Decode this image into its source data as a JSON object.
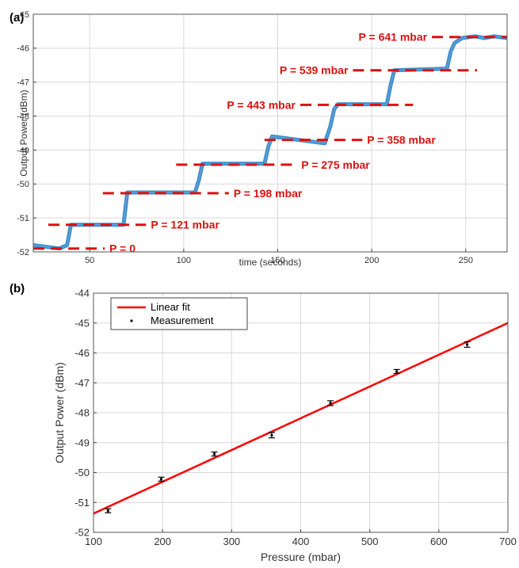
{
  "panels": {
    "a": "(a)",
    "b": "(b)"
  },
  "chart_data": [
    {
      "type": "line",
      "xlabel": "time (seconds)",
      "ylabel": "Output Power (dBm)",
      "xlim": [
        20,
        272
      ],
      "ylim": [
        -52,
        -45
      ],
      "xticks": [
        50,
        100,
        150,
        200,
        250
      ],
      "yticks": [
        -52,
        -51,
        -50,
        -49,
        -48,
        -47,
        -46,
        -45
      ],
      "grid": true,
      "series": [
        {
          "type": "line",
          "color": "#2f7fc1",
          "x": [
            20,
            34,
            38,
            40,
            68,
            70,
            106,
            108,
            110,
            143,
            145,
            147,
            175,
            178,
            180,
            182,
            208,
            210,
            212,
            240,
            242,
            244,
            248,
            255,
            260,
            265,
            272
          ],
          "y": [
            -51.8,
            -51.9,
            -51.8,
            -51.2,
            -51.2,
            -50.25,
            -50.25,
            -49.9,
            -49.4,
            -49.4,
            -48.9,
            -48.6,
            -48.8,
            -48.3,
            -47.8,
            -47.65,
            -47.65,
            -47.1,
            -46.65,
            -46.6,
            -46.1,
            -45.85,
            -45.7,
            -45.65,
            -45.7,
            -45.65,
            -45.7
          ]
        }
      ],
      "reference_lines": [
        {
          "label": "P = 0",
          "y": -51.9,
          "x0": 20,
          "x1": 58
        },
        {
          "label": "P = 121 mbar",
          "y": -51.2,
          "x0": 28,
          "x1": 80
        },
        {
          "label": "P = 198 mbar",
          "y": -50.27,
          "x0": 57,
          "x1": 124
        },
        {
          "label": "P = 275 mbar",
          "y": -49.43,
          "x0": 96,
          "x1": 160
        },
        {
          "label": "P = 358 mbar",
          "y": -48.7,
          "x0": 143,
          "x1": 195
        },
        {
          "label": "P = 443 mbar",
          "y": -47.67,
          "x0": 162,
          "x1": 222
        },
        {
          "label": "P = 539 mbar",
          "y": -46.65,
          "x0": 190,
          "x1": 256
        },
        {
          "label": "P = 641 mbar",
          "y": -45.67,
          "x0": 232,
          "x1": 272
        }
      ],
      "reference_color": "#dd1111"
    },
    {
      "type": "scatter",
      "xlabel": "Pressure (mbar)",
      "ylabel": "Output Power (dBm)",
      "xlim": [
        100,
        700
      ],
      "ylim": [
        -52,
        -44
      ],
      "xticks": [
        100,
        200,
        300,
        400,
        500,
        600,
        700
      ],
      "yticks": [
        -52,
        -51,
        -50,
        -49,
        -48,
        -47,
        -46,
        -45,
        -44
      ],
      "grid": true,
      "legend": {
        "position": "top-left",
        "entries": [
          "Linear fit",
          "Measurement"
        ]
      },
      "series": [
        {
          "name": "Linear fit",
          "type": "line",
          "color": "#ff0000",
          "x": [
            100,
            700
          ],
          "y": [
            -51.37,
            -45.0
          ]
        },
        {
          "name": "Measurement",
          "type": "scatter",
          "color": "#000000",
          "x": [
            121,
            198,
            275,
            358,
            443,
            539,
            641
          ],
          "y": [
            -51.28,
            -50.22,
            -49.38,
            -48.75,
            -47.68,
            -46.62,
            -45.72
          ],
          "error": [
            0.03,
            0.06,
            0.04,
            0.09,
            0.08,
            0.05,
            0.09
          ]
        }
      ]
    }
  ]
}
